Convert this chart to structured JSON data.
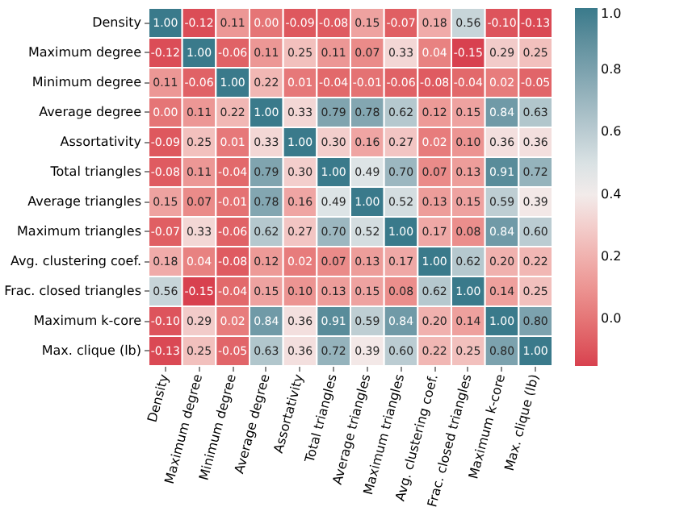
{
  "chart_data": {
    "type": "heatmap",
    "categories": [
      "Density",
      "Maximum degree",
      "Minimum degree",
      "Average degree",
      "Assortativity",
      "Total triangles",
      "Average triangles",
      "Maximum triangles",
      "Avg. clustering coef.",
      "Frac. closed triangles",
      "Maximum k-core",
      "Max. clique (lb)"
    ],
    "y_categories": [
      "Density",
      "Maximum degree",
      "Minimum degree",
      "Average degree",
      "Assortativity",
      "Total triangles",
      "Average triangles",
      "Maximum triangles",
      "Avg. clustering coef.",
      "Frac. closed triangles",
      "Maximum k-core",
      "Max. clique (lb)"
    ],
    "cells": [
      [
        1.0,
        -0.12,
        0.11,
        0.0,
        -0.09,
        -0.08,
        0.15,
        -0.07,
        0.18,
        0.56,
        -0.1,
        -0.13
      ],
      [
        -0.12,
        1.0,
        -0.06,
        0.11,
        0.25,
        0.11,
        0.07,
        0.33,
        0.04,
        -0.15,
        0.29,
        0.25
      ],
      [
        0.11,
        -0.06,
        1.0,
        0.22,
        0.01,
        -0.04,
        -0.01,
        -0.06,
        -0.08,
        -0.04,
        0.02,
        -0.05
      ],
      [
        0.0,
        0.11,
        0.22,
        1.0,
        0.33,
        0.79,
        0.78,
        0.62,
        0.12,
        0.15,
        0.84,
        0.63
      ],
      [
        -0.09,
        0.25,
        0.01,
        0.33,
        1.0,
        0.3,
        0.16,
        0.27,
        0.02,
        0.1,
        0.36,
        0.36
      ],
      [
        -0.08,
        0.11,
        -0.04,
        0.79,
        0.3,
        1.0,
        0.49,
        0.7,
        0.07,
        0.13,
        0.91,
        0.72
      ],
      [
        0.15,
        0.07,
        -0.01,
        0.78,
        0.16,
        0.49,
        1.0,
        0.52,
        0.13,
        0.15,
        0.59,
        0.39
      ],
      [
        -0.07,
        0.33,
        -0.06,
        0.62,
        0.27,
        0.7,
        0.52,
        1.0,
        0.17,
        0.08,
        0.84,
        0.6
      ],
      [
        0.18,
        0.04,
        -0.08,
        0.12,
        0.02,
        0.07,
        0.13,
        0.17,
        1.0,
        0.62,
        0.2,
        0.22
      ],
      [
        0.56,
        -0.15,
        -0.04,
        0.15,
        0.1,
        0.13,
        0.15,
        0.08,
        0.62,
        1.0,
        0.14,
        0.25
      ],
      [
        -0.1,
        0.29,
        0.02,
        0.84,
        0.36,
        0.91,
        0.59,
        0.84,
        0.2,
        0.14,
        1.0,
        0.8
      ],
      [
        -0.13,
        0.25,
        -0.05,
        0.63,
        0.36,
        0.72,
        0.39,
        0.6,
        0.22,
        0.25,
        0.8,
        1.0
      ]
    ],
    "cell_labels": [
      [
        "1.00",
        "-0.12",
        "0.11",
        "0.00",
        "-0.09",
        "-0.08",
        "0.15",
        "-0.07",
        "0.18",
        "0.56",
        "-0.10",
        "-0.13"
      ],
      [
        "-0.12",
        "1.00",
        "-0.06",
        "0.11",
        "0.25",
        "0.11",
        "0.07",
        "0.33",
        "0.04",
        "-0.15",
        "0.29",
        "0.25"
      ],
      [
        "0.11",
        "-0.06",
        "1.00",
        "0.22",
        "0.01",
        "-0.04",
        "-0.01",
        "-0.06",
        "-0.08",
        "-0.04",
        "0.02",
        "-0.05"
      ],
      [
        "0.00",
        "0.11",
        "0.22",
        "1.00",
        "0.33",
        "0.79",
        "0.78",
        "0.62",
        "0.12",
        "0.15",
        "0.84",
        "0.63"
      ],
      [
        "-0.09",
        "0.25",
        "0.01",
        "0.33",
        "1.00",
        "0.30",
        "0.16",
        "0.27",
        "0.02",
        "0.10",
        "0.36",
        "0.36"
      ],
      [
        "-0.08",
        "0.11",
        "-0.04",
        "0.79",
        "0.30",
        "1.00",
        "0.49",
        "0.70",
        "0.07",
        "0.13",
        "0.91",
        "0.72"
      ],
      [
        "0.15",
        "0.07",
        "-0.01",
        "0.78",
        "0.16",
        "0.49",
        "1.00",
        "0.52",
        "0.13",
        "0.15",
        "0.59",
        "0.39"
      ],
      [
        "-0.07",
        "0.33",
        "-0.06",
        "0.62",
        "0.27",
        "0.70",
        "0.52",
        "1.00",
        "0.17",
        "0.08",
        "0.84",
        "0.60"
      ],
      [
        "0.18",
        "0.04",
        "-0.08",
        "0.12",
        "0.02",
        "0.07",
        "0.13",
        "0.17",
        "1.00",
        "0.62",
        "0.20",
        "0.22"
      ],
      [
        "0.56",
        "-0.15",
        "-0.04",
        "0.15",
        "0.10",
        "0.13",
        "0.15",
        "0.08",
        "0.62",
        "1.00",
        "0.14",
        "0.25"
      ],
      [
        "-0.10",
        "0.29",
        "0.02",
        "0.84",
        "0.36",
        "0.91",
        "0.59",
        "0.84",
        "0.20",
        "0.14",
        "1.00",
        "0.80"
      ],
      [
        "-0.13",
        "0.25",
        "-0.05",
        "0.63",
        "0.36",
        "0.72",
        "0.39",
        "0.60",
        "0.22",
        "0.25",
        "0.80",
        "1.00"
      ]
    ],
    "clim": [
      -0.15,
      1.0
    ],
    "cticks": [
      {
        "value": 0.0,
        "label": "0.0"
      },
      {
        "value": 0.2,
        "label": "0.2"
      },
      {
        "value": 0.4,
        "label": "0.4"
      },
      {
        "value": 0.6,
        "label": "0.6"
      },
      {
        "value": 0.8,
        "label": "0.8"
      },
      {
        "value": 1.0,
        "label": "1.0"
      }
    ],
    "data_labels": true
  }
}
